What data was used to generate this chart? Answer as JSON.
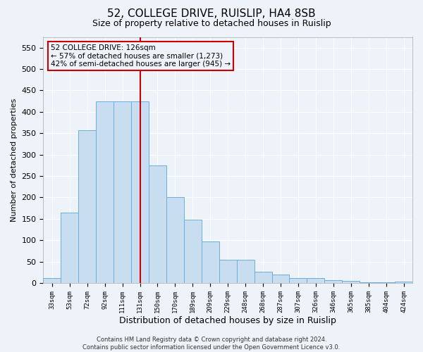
{
  "title": "52, COLLEGE DRIVE, RUISLIP, HA4 8SB",
  "subtitle": "Size of property relative to detached houses in Ruislip",
  "xlabel": "Distribution of detached houses by size in Ruislip",
  "ylabel": "Number of detached properties",
  "categories": [
    "33sqm",
    "53sqm",
    "72sqm",
    "92sqm",
    "111sqm",
    "131sqm",
    "150sqm",
    "170sqm",
    "189sqm",
    "209sqm",
    "229sqm",
    "248sqm",
    "268sqm",
    "287sqm",
    "307sqm",
    "326sqm",
    "346sqm",
    "365sqm",
    "385sqm",
    "404sqm",
    "424sqm"
  ],
  "values": [
    12,
    165,
    357,
    425,
    425,
    425,
    275,
    200,
    148,
    97,
    55,
    55,
    27,
    20,
    12,
    12,
    7,
    5,
    2,
    2,
    4
  ],
  "bar_color": "#c8ddf0",
  "bar_edge_color": "#6aafdd",
  "red_line_index": 5,
  "annotation_title": "52 COLLEGE DRIVE: 126sqm",
  "annotation_line1": "← 57% of detached houses are smaller (1,273)",
  "annotation_line2": "42% of semi-detached houses are larger (945) →",
  "ylim": [
    0,
    575
  ],
  "yticks": [
    0,
    50,
    100,
    150,
    200,
    250,
    300,
    350,
    400,
    450,
    500,
    550
  ],
  "background_color": "#eef2f9",
  "footer1": "Contains HM Land Registry data © Crown copyright and database right 2024.",
  "footer2": "Contains public sector information licensed under the Open Government Licence v3.0.",
  "annotation_box_color": "#cc0000",
  "grid_color": "#ffffff",
  "title_fontsize": 11,
  "subtitle_fontsize": 9
}
